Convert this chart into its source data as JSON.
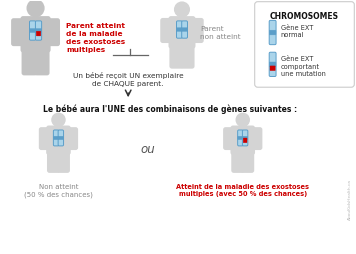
{
  "bg_color": "#ffffff",
  "parent1_label": "Parent atteint\nde la maladie\ndes exostoses\nmultiples",
  "parent2_label": "Parent\nnon atteint",
  "middle_text": "Un bébé reçoit UN exemplaire\nde CHAQUE parent.",
  "title_text": "Le bébé aura l'UNE des combinaisons de gènes suivantes :",
  "child1_label": "Non atteint\n(50 % des chances)",
  "child2_label": "Atteint de la maladie des exostoses\nmultiples (avec 50 % des chances)",
  "legend_title": "CHROMOSOMES",
  "legend_normal": "Gène EXT\nnormal",
  "legend_mutant": "Gène EXT\ncomportant\nune mutation",
  "ou": "ou",
  "watermark": "AbouKidsHealth.ca",
  "red": "#cc0000",
  "blue_dark": "#5b9ec9",
  "blue_light": "#aad4ea",
  "gray_body": "#c2c2c2",
  "gray_body2": "#d4d4d4",
  "gray_text": "#888888",
  "dark_text": "#333333",
  "legend_border": "#cccccc"
}
